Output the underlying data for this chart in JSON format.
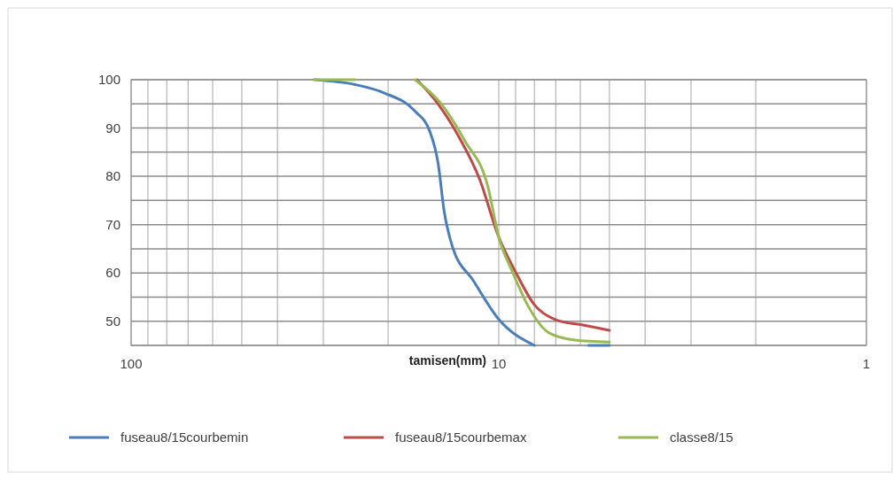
{
  "chart_data": {
    "type": "line",
    "xlabel": "tamisen(mm)",
    "log": "x",
    "grid": true,
    "legend": "bottom",
    "xlim": [
      100,
      1
    ],
    "ylim": [
      45,
      100
    ],
    "xticks": [
      100,
      {
        "value": 90,
        "label": null
      },
      {
        "value": 80,
        "label": null
      },
      {
        "value": 70,
        "label": null
      },
      {
        "value": 60,
        "label": null
      },
      {
        "value": 50,
        "label": null
      },
      {
        "value": 40,
        "label": null
      },
      {
        "value": 30,
        "label": null
      },
      {
        "value": 20,
        "label": null
      },
      10,
      {
        "value": 9,
        "label": null
      },
      {
        "value": 8,
        "label": null
      },
      {
        "value": 7,
        "label": null
      },
      {
        "value": 6,
        "label": null
      },
      {
        "value": 5,
        "label": null
      },
      {
        "value": 4,
        "label": null
      },
      {
        "value": 3,
        "label": null
      },
      {
        "value": 2,
        "label": null
      },
      1
    ],
    "yticks": [
      {
        "value": 45,
        "label": null
      },
      50,
      {
        "value": 55,
        "label": null
      },
      60,
      {
        "value": 65,
        "label": null
      },
      70,
      {
        "value": 75,
        "label": null
      },
      80,
      {
        "value": 85,
        "label": null
      },
      90,
      {
        "value": 95,
        "label": null
      },
      100
    ],
    "series": [
      {
        "name": "fuseau8/15courbemin",
        "color": "#4a7ebb",
        "x": [
          31.7,
          24.6,
          20.4,
          16.9,
          15.4,
          14.6,
          14.1,
          13.4,
          11.7,
          10,
          8,
          6.5,
          5.7,
          5
        ],
        "values": [
          100,
          99,
          97.2,
          93.5,
          89.3,
          82.4,
          73.1,
          65.7,
          58.3,
          50.4,
          45,
          null,
          45,
          45
        ]
      },
      {
        "name": "fuseau8/15courbemax",
        "color": "#be4b48",
        "x": [
          16.7,
          14.6,
          12.8,
          11.3,
          10,
          9,
          8,
          7,
          5.9,
          5
        ],
        "values": [
          100,
          94.9,
          88,
          79.6,
          67.4,
          60.2,
          53.4,
          50.3,
          49.2,
          48.1
        ]
      },
      {
        "name": "classe8/15",
        "color": "#98b954",
        "x": [
          31.7,
          24.6,
          20,
          16.9,
          14.3,
          12.4,
          10.7,
          10,
          9.2,
          8.3,
          7.3,
          6.2,
          5
        ],
        "values": [
          100,
          100,
          null,
          100,
          94.9,
          87.5,
          77.8,
          67.4,
          60.4,
          53,
          47.6,
          46.1,
          45.7
        ]
      }
    ]
  }
}
